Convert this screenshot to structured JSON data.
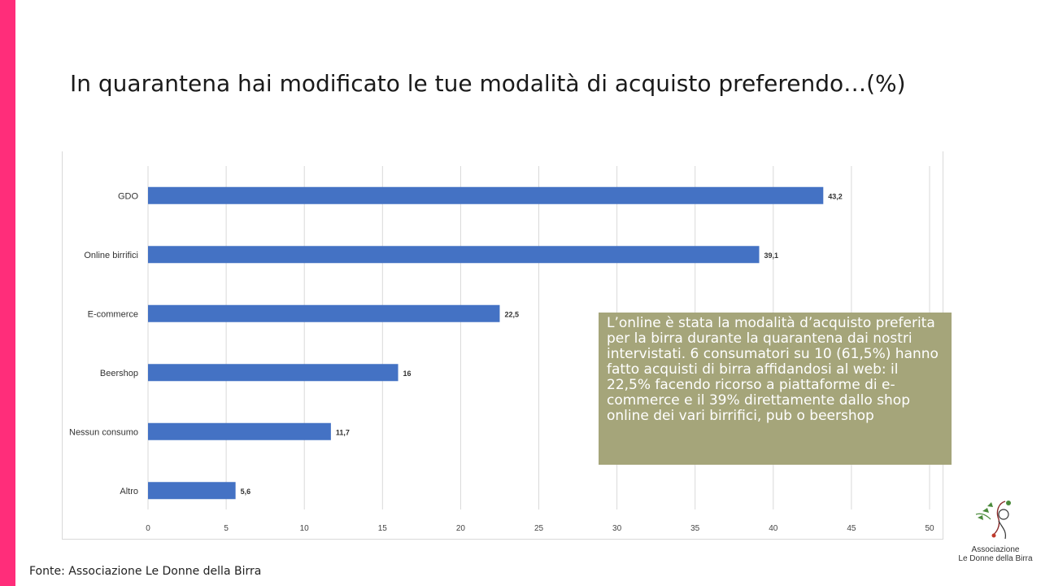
{
  "slide": {
    "title": "In quarantena hai modificato le tue modalità di acquisto preferendo…(%)",
    "source": "Fonte: Associazione Le Donne della Birra",
    "callout": "L’online è stata la modalità d’acquisto preferita per la birra durante la quarantena dai nostri intervistati. 6 consumatori su 10 (61,5%) hanno fatto acquisti di birra affidandosi al web: il 22,5% facendo ricorso a piattaforme di e-commerce e il 39% direttamente dallo shop online dei vari birrifici, pub o beershop",
    "logo": {
      "line1": "Associazione",
      "line2": "Le Donne della Birra"
    }
  },
  "colors": {
    "accent": "#ff2d7a",
    "bar": "#4472c4",
    "callout_bg": "#a5a57a",
    "grid": "#d9d9d9"
  },
  "chart_data": {
    "type": "bar",
    "orientation": "horizontal",
    "categories": [
      "GDO",
      "Online birrifici",
      "E-commerce",
      "Beershop",
      "Nessun consumo",
      "Altro"
    ],
    "values": [
      43.2,
      39.1,
      22.5,
      16,
      11.7,
      5.6
    ],
    "value_labels": [
      "43,2",
      "39,1",
      "22,5",
      "16",
      "11,7",
      "5,6"
    ],
    "xlim": [
      0,
      50
    ],
    "xticks": [
      0,
      5,
      10,
      15,
      20,
      25,
      30,
      35,
      40,
      45,
      50
    ],
    "grid": true,
    "legend": "none"
  }
}
